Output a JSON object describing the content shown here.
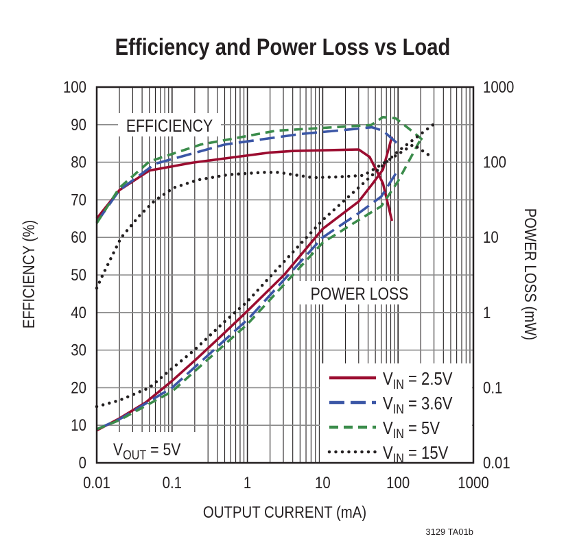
{
  "chart_data": {
    "type": "line",
    "title": "Efficiency and Power Loss vs Load",
    "xlabel": "OUTPUT CURRENT (mA)",
    "ylabel": "EFFICIENCY (%)",
    "y2label": "POWER LOSS (mW)",
    "xscale": "log",
    "xlim": [
      0.01,
      1000
    ],
    "ylim": [
      0,
      100
    ],
    "y2scale": "log",
    "y2lim": [
      0.01,
      1000
    ],
    "grid": true,
    "legend_placement": "bottom-right",
    "x_ticks": [
      "0.01",
      "0.1",
      "1",
      "10",
      "100",
      "1000"
    ],
    "y_ticks": [
      "0",
      "10",
      "20",
      "30",
      "40",
      "50",
      "60",
      "70",
      "80",
      "90",
      "100"
    ],
    "y2_ticks": [
      "0.01",
      "0.1",
      "1",
      "10",
      "100",
      "1000"
    ],
    "annotations": {
      "efficiency": "EFFICIENCY",
      "power_loss": "POWER LOSS",
      "vout_main": "V",
      "vout_sub": "OUT",
      "vout_rest": " = 5V"
    },
    "footer": "3129 TA01b",
    "series": [
      {
        "name": "VIN = 2.5V",
        "label_main": "V",
        "label_sub": "IN",
        "label_rest": " = 2.5V",
        "color": "#9b0d30",
        "style": "solid",
        "efficiency": [
          [
            0.01,
            65
          ],
          [
            0.02,
            72.6
          ],
          [
            0.05,
            77.8
          ],
          [
            0.19,
            79.9
          ],
          [
            2,
            82.6
          ],
          [
            4,
            83
          ],
          [
            30,
            83.4
          ],
          [
            42,
            81.4
          ],
          [
            63,
            74.4
          ],
          [
            83,
            64.4
          ]
        ],
        "power_loss": [
          [
            0.01,
            0.027
          ],
          [
            0.02,
            0.039
          ],
          [
            0.045,
            0.064
          ],
          [
            0.097,
            0.12
          ],
          [
            0.21,
            0.24
          ],
          [
            0.45,
            0.49
          ],
          [
            1.05,
            1.1
          ],
          [
            3.1,
            3.2
          ],
          [
            10,
            13
          ],
          [
            30,
            30
          ],
          [
            46,
            52
          ],
          [
            63,
            80
          ],
          [
            83,
            219
          ]
        ]
      },
      {
        "name": "VIN = 3.6V",
        "label_main": "V",
        "label_sub": "IN",
        "label_rest": " = 3.6V",
        "color": "#3b56a6",
        "style": "long-dash",
        "efficiency": [
          [
            0.01,
            64
          ],
          [
            0.02,
            72.6
          ],
          [
            0.06,
            79.6
          ],
          [
            0.5,
            84.7
          ],
          [
            5,
            87.5
          ],
          [
            32,
            89
          ],
          [
            45,
            89.3
          ],
          [
            63,
            88.4
          ],
          [
            98,
            85
          ]
        ],
        "power_loss": [
          [
            0.01,
            0.028
          ],
          [
            0.02,
            0.038
          ],
          [
            0.1,
            0.1
          ],
          [
            1.05,
            0.84
          ],
          [
            10,
            10
          ],
          [
            30,
            21
          ],
          [
            60,
            35
          ],
          [
            100,
            79
          ]
        ]
      },
      {
        "name": "VIN = 5V",
        "label_main": "V",
        "label_sub": "IN",
        "label_rest": " = 5V",
        "color": "#3b8c4b",
        "style": "dash",
        "efficiency": [
          [
            0.01,
            63.8
          ],
          [
            0.02,
            73.2
          ],
          [
            0.05,
            80.2
          ],
          [
            0.24,
            84.7
          ],
          [
            2.4,
            88.4
          ],
          [
            44,
            89.9
          ],
          [
            63,
            92
          ],
          [
            93,
            91.7
          ],
          [
            160,
            88
          ],
          [
            210,
            86
          ]
        ],
        "power_loss": [
          [
            0.01,
            0.028
          ],
          [
            0.02,
            0.037
          ],
          [
            0.1,
            0.089
          ],
          [
            1,
            0.7
          ],
          [
            10,
            8.5
          ],
          [
            30,
            17
          ],
          [
            60,
            26
          ],
          [
            100,
            56
          ],
          [
            200,
            204
          ]
        ]
      },
      {
        "name": "VIN = 15V",
        "label_main": "V",
        "label_sub": "IN",
        "label_rest": " = 15V",
        "color": "#231f20",
        "style": "dotted",
        "efficiency": [
          [
            0.01,
            46.5
          ],
          [
            0.012,
            50
          ],
          [
            0.021,
            59.9
          ],
          [
            0.037,
            65.8
          ],
          [
            0.059,
            69.8
          ],
          [
            0.105,
            73.2
          ],
          [
            0.22,
            75.3
          ],
          [
            0.56,
            76.7
          ],
          [
            1.6,
            77.3
          ],
          [
            2.6,
            77.3
          ],
          [
            7.4,
            75.9
          ],
          [
            16,
            76.1
          ],
          [
            35,
            76.5
          ],
          [
            74,
            80.5
          ],
          [
            160,
            84.7
          ],
          [
            260,
            81.8
          ]
        ],
        "power_loss": [
          [
            0.01,
            0.056
          ],
          [
            0.02,
            0.068
          ],
          [
            0.05,
            0.1
          ],
          [
            0.1,
            0.18
          ],
          [
            0.2,
            0.32
          ],
          [
            0.5,
            0.76
          ],
          [
            1,
            1.4
          ],
          [
            2,
            3
          ],
          [
            10,
            17
          ],
          [
            30,
            46
          ],
          [
            100,
            140
          ],
          [
            300,
            323
          ]
        ]
      }
    ]
  }
}
